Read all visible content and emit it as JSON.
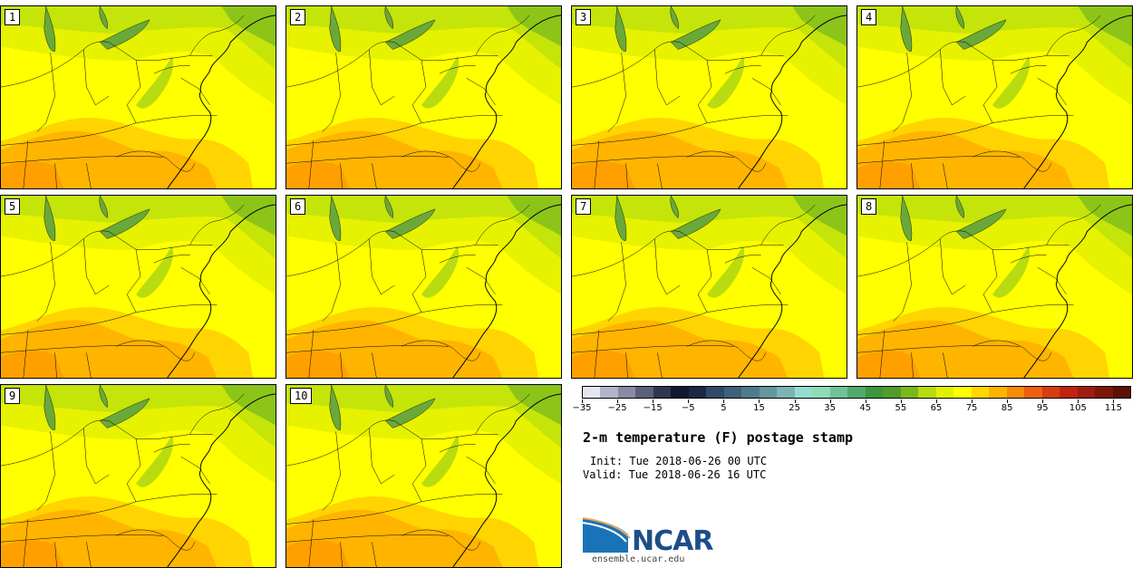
{
  "title": "2-m temperature (F) postage stamp",
  "init_line": "Init: Tue 2018-06-26 00 UTC",
  "valid_line": "Valid: Tue 2018-06-26 16 UTC",
  "logo_text": "NCAR",
  "url": "ensemble.ucar.edu",
  "members": [
    {
      "label": "1"
    },
    {
      "label": "2"
    },
    {
      "label": "3"
    },
    {
      "label": "4"
    },
    {
      "label": "5"
    },
    {
      "label": "6"
    },
    {
      "label": "7"
    },
    {
      "label": "8"
    },
    {
      "label": "9"
    },
    {
      "label": "10"
    }
  ],
  "colorbar": {
    "ticks": [
      "−35",
      "−25",
      "−15",
      "−5",
      "5",
      "15",
      "25",
      "35",
      "45",
      "55",
      "65",
      "75",
      "85",
      "95",
      "105",
      "115"
    ],
    "colors": [
      "#e6e6f0",
      "#b4b4c8",
      "#8a8aa4",
      "#5a6278",
      "#2e3650",
      "#101830",
      "#1a2846",
      "#2e4a66",
      "#3e6078",
      "#4e7a8c",
      "#64969e",
      "#7cb4b4",
      "#94dcd0",
      "#8cdcb4",
      "#6ec496",
      "#52aa6a",
      "#3c963c",
      "#529c2a",
      "#7ab818",
      "#b6dc0c",
      "#e0f200",
      "#ffff00",
      "#ffd800",
      "#ffb400",
      "#f88c08",
      "#ee6010",
      "#d83c10",
      "#be2410",
      "#a01c10",
      "#7c1808",
      "#5c1008"
    ]
  }
}
